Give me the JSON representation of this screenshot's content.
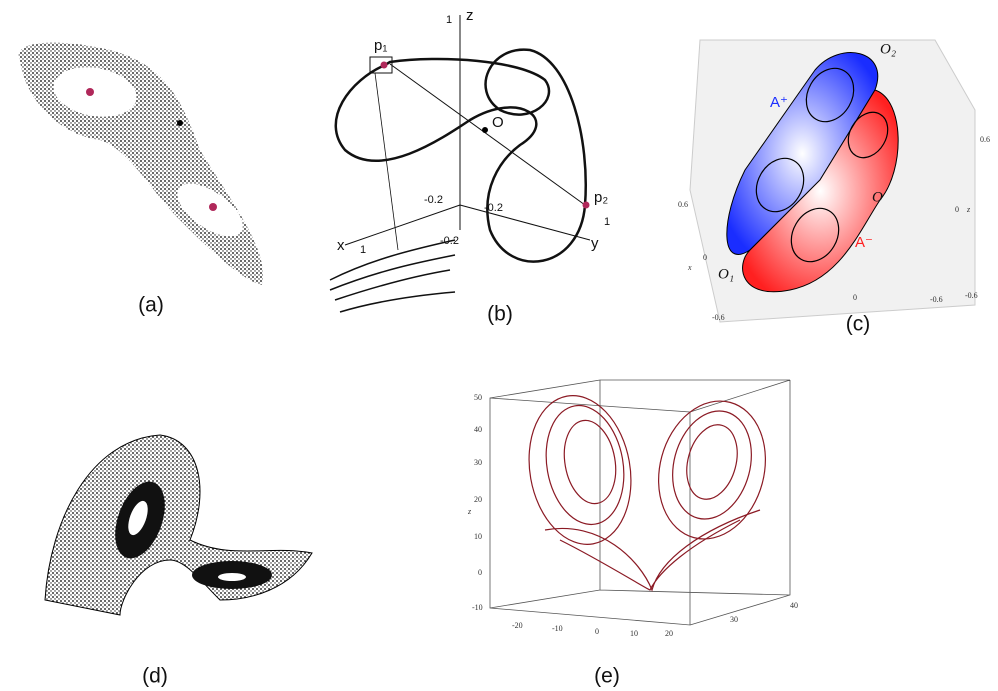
{
  "panels": [
    {
      "caption": "(a)"
    },
    {
      "caption": "(b)",
      "labels": [
        "1",
        "z",
        "p₁",
        "O",
        "-0.2",
        "-0.2",
        "-0.2",
        "x",
        "1",
        "y",
        "1",
        "p₂"
      ]
    },
    {
      "caption": "(c)",
      "labels": [
        "O₂",
        "A⁺",
        "0.6",
        "0",
        "z",
        "-0.6",
        "0.6",
        "x",
        "0",
        "-0.6",
        "O",
        "A⁻",
        "O₁",
        "0",
        "-0.6"
      ]
    },
    {
      "caption": "(d)"
    },
    {
      "caption": "(e)",
      "labels": [
        "50",
        "40",
        "30",
        "20",
        "10",
        "0",
        "-10",
        "z",
        "-20",
        "-10",
        "0",
        "10",
        "20",
        "30",
        "40"
      ]
    }
  ]
}
